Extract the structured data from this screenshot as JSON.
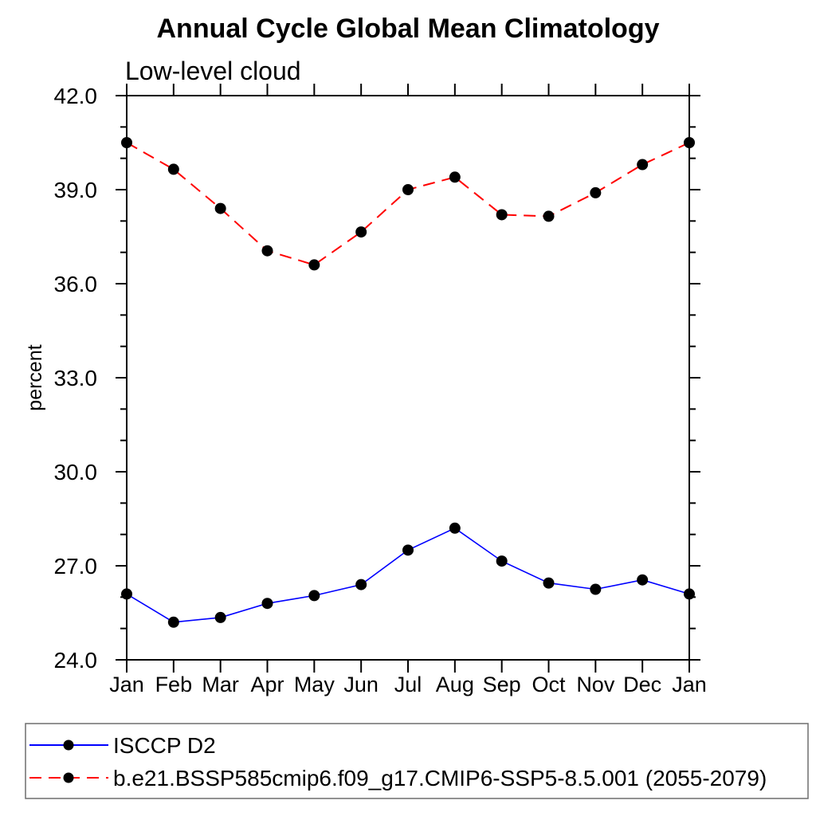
{
  "chart_data": {
    "type": "line",
    "title": "Annual Cycle Global Mean Climatology",
    "subtitle": "Low-level cloud",
    "ylabel": "percent",
    "categories": [
      "Jan",
      "Feb",
      "Mar",
      "Apr",
      "May",
      "Jun",
      "Jul",
      "Aug",
      "Sep",
      "Oct",
      "Nov",
      "Dec",
      "Jan"
    ],
    "ylim": [
      24.0,
      42.0
    ],
    "ytick_major_step": 3.0,
    "ytick_minor_step": 1.0,
    "ytick_labels": [
      "24.0",
      "27.0",
      "30.0",
      "33.0",
      "36.0",
      "39.0",
      "42.0"
    ],
    "grid": false,
    "legend_position": "bottom-left-boxed",
    "axis_color": "#000000",
    "legend_box_color": "#6e6e6e",
    "series": [
      {
        "name": "ISCCP D2",
        "color": "#0000ff",
        "line_style": "solid",
        "marker": "filled-circle",
        "marker_color": "#000000",
        "values": [
          26.1,
          25.2,
          25.35,
          25.8,
          26.05,
          26.4,
          27.5,
          28.2,
          27.15,
          26.45,
          26.25,
          26.55,
          26.1
        ]
      },
      {
        "name": "b.e21.BSSP585cmip6.f09_g17.CMIP6-SSP5-8.5.001 (2055-2079)",
        "color": "#ff0000",
        "line_style": "dashed",
        "marker": "filled-circle",
        "marker_color": "#000000",
        "values": [
          40.5,
          39.65,
          38.4,
          37.05,
          36.6,
          37.65,
          39.0,
          39.4,
          38.2,
          38.15,
          38.9,
          39.8,
          40.5
        ]
      }
    ]
  }
}
